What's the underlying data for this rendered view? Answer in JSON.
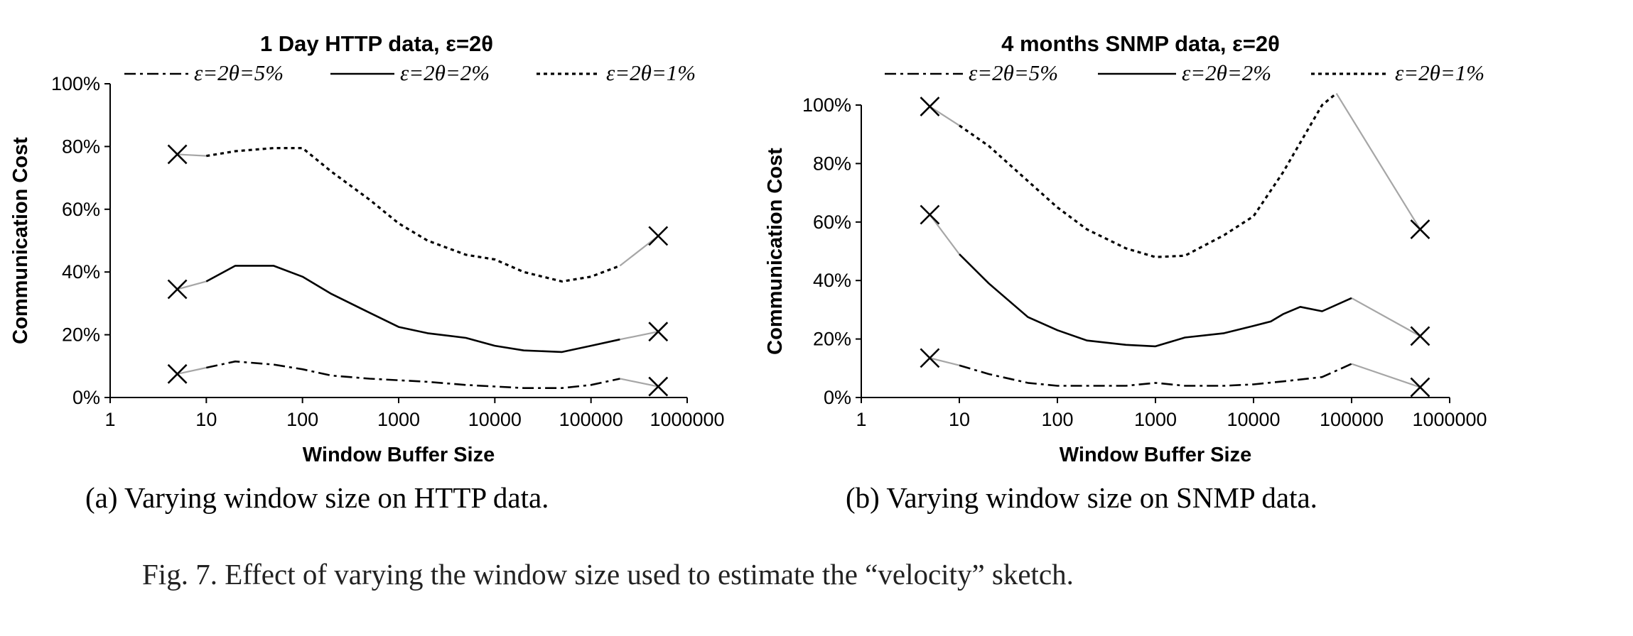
{
  "chart_data": [
    {
      "type": "line",
      "title": "1 Day HTTP data, ε=2θ",
      "xlabel": "Window Buffer Size",
      "ylabel": "Communication Cost",
      "x_scale": "log",
      "xlim": [
        1,
        1000000
      ],
      "ylim": [
        0,
        100
      ],
      "x_tick_labels": [
        "1",
        "10",
        "100",
        "1000",
        "10000",
        "100000",
        "1000000"
      ],
      "y_tick_labels": [
        "0%",
        "20%",
        "40%",
        "60%",
        "80%",
        "100%"
      ],
      "legend_position": "top",
      "series": [
        {
          "name": "ε=2θ=5%",
          "style": "dash-dot",
          "x": [
            10,
            20,
            50,
            100,
            200,
            500,
            1000,
            2000,
            5000,
            10000,
            20000,
            50000,
            100000,
            200000
          ],
          "y": [
            9.5,
            11.5,
            10.5,
            9,
            7,
            6,
            5.5,
            5,
            4,
            3.5,
            3,
            3,
            4,
            6
          ]
        },
        {
          "name": "ε=2θ=2%",
          "style": "solid",
          "x": [
            10,
            20,
            50,
            100,
            200,
            500,
            1000,
            2000,
            5000,
            10000,
            20000,
            50000,
            100000,
            200000
          ],
          "y": [
            37,
            42,
            42,
            38.5,
            33,
            27,
            22.5,
            20.5,
            19,
            16.5,
            15,
            14.5,
            16.5,
            18.5
          ]
        },
        {
          "name": "ε=2θ=1%",
          "style": "dotted",
          "x": [
            10,
            20,
            50,
            100,
            200,
            500,
            1000,
            2000,
            5000,
            10000,
            20000,
            50000,
            100000,
            200000
          ],
          "y": [
            77,
            78.5,
            79.5,
            79.5,
            72,
            63,
            55.5,
            50,
            45.5,
            44,
            40,
            37,
            38.5,
            42
          ]
        }
      ],
      "markers": [
        {
          "series": "ε=2θ=5%",
          "left": [
            5,
            7.5
          ],
          "right": [
            500000,
            3.5
          ]
        },
        {
          "series": "ε=2θ=2%",
          "left": [
            5,
            34.5
          ],
          "right": [
            500000,
            21
          ]
        },
        {
          "series": "ε=2θ=1%",
          "left": [
            5,
            77.5
          ],
          "right": [
            500000,
            51.5
          ]
        }
      ]
    },
    {
      "type": "line",
      "title": "4 months SNMP data, ε=2θ",
      "xlabel": "Window Buffer Size",
      "ylabel": "Communication Cost",
      "x_scale": "log",
      "xlim": [
        1,
        1000000
      ],
      "ylim": [
        0,
        100
      ],
      "x_tick_labels": [
        "1",
        "10",
        "100",
        "1000",
        "10000",
        "100000",
        "1000000"
      ],
      "y_tick_labels": [
        "0%",
        "20%",
        "40%",
        "60%",
        "80%",
        "100%"
      ],
      "legend_position": "top",
      "series": [
        {
          "name": "ε=2θ=5%",
          "style": "dash-dot",
          "x": [
            10,
            20,
            50,
            100,
            200,
            500,
            1000,
            2000,
            5000,
            10000,
            20000,
            50000,
            100000
          ],
          "y": [
            11,
            8,
            5,
            4,
            4,
            4,
            5,
            4,
            4,
            4.5,
            5.5,
            7,
            11.5
          ]
        },
        {
          "name": "ε=2θ=2%",
          "style": "solid",
          "x": [
            10,
            20,
            50,
            100,
            200,
            500,
            1000,
            2000,
            5000,
            10000,
            15000,
            20000,
            30000,
            50000,
            100000
          ],
          "y": [
            49,
            39,
            27.5,
            23,
            19.5,
            18,
            17.5,
            20.5,
            22,
            24.5,
            26,
            28.5,
            31,
            29.5,
            34
          ]
        },
        {
          "name": "ε=2θ=1%",
          "style": "dotted",
          "x": [
            10,
            20,
            50,
            100,
            200,
            500,
            1000,
            2000,
            5000,
            10000,
            20000,
            50000,
            70000
          ],
          "y": [
            93,
            86,
            74,
            65,
            57.5,
            51,
            48,
            48.5,
            55.5,
            62,
            77,
            100,
            104
          ]
        }
      ],
      "markers": [
        {
          "series": "ε=2θ=5%",
          "left": [
            5,
            13.5
          ],
          "right": [
            500000,
            3.5
          ]
        },
        {
          "series": "ε=2θ=2%",
          "left": [
            5,
            62.5
          ],
          "right": [
            500000,
            21
          ]
        },
        {
          "series": "ε=2θ=1%",
          "left": [
            5,
            99.5
          ],
          "right": [
            500000,
            57.5
          ]
        }
      ]
    }
  ],
  "captions": {
    "a": "(a)  Varying window size on HTTP data.",
    "b": "(b)  Varying window size on SNMP data.",
    "figure": "Fig. 7.    Effect of varying the window size used to estimate the “velocity” sketch."
  },
  "colors": {
    "line": "#000000",
    "connector": "#a6a6a6",
    "axis": "#000000"
  }
}
